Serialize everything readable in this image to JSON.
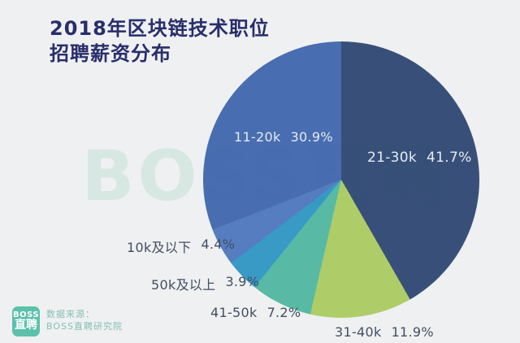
{
  "header": {
    "title_line1": "2018年区块链技术职位",
    "title_line2": "招聘薪资分布"
  },
  "watermark": {
    "text": "BOSS直聘"
  },
  "chart_data": {
    "type": "pie",
    "title": "2018年区块链技术职位招聘薪资分布",
    "unit": "%",
    "start_angle_deg": 0,
    "direction": "clockwise",
    "legend_position": "none",
    "grid": false,
    "categories": [
      "21-30k",
      "31-40k",
      "41-50k",
      "50k及以上",
      "10k及以下",
      "11-20k"
    ],
    "values": [
      41.7,
      11.9,
      7.2,
      3.9,
      4.4,
      30.9
    ],
    "slices": [
      {
        "name": "21-30k",
        "value": 41.7,
        "pct_label": "41.7%",
        "color": "#2a4470",
        "label_placement": "inside"
      },
      {
        "name": "31-40k",
        "value": 11.9,
        "pct_label": "11.9%",
        "color": "#a9ca5e",
        "label_placement": "outside"
      },
      {
        "name": "41-50k",
        "value": 7.2,
        "pct_label": "7.2%",
        "color": "#4db69f",
        "label_placement": "outside"
      },
      {
        "name": "50k及以上",
        "value": 3.9,
        "pct_label": "3.9%",
        "color": "#2a93c2",
        "label_placement": "outside"
      },
      {
        "name": "10k及以下",
        "value": 4.4,
        "pct_label": "4.4%",
        "color": "#4a74bc",
        "label_placement": "outside"
      },
      {
        "name": "11-20k",
        "value": 30.9,
        "pct_label": "30.9%",
        "color": "#3c63ac",
        "label_placement": "inside"
      }
    ]
  },
  "footer": {
    "logo_line1": "BOSS",
    "logo_line2": "直聘",
    "source_label": "数据来源：",
    "source_name": "BOSS直聘研究院",
    "logo_color": "#5cc0ab",
    "source_text_color": "#84c0b6"
  },
  "colors": {
    "background": "#eff0f1",
    "title": "#272e6b",
    "label_dark": "#424e63",
    "label_light": "#e7ebf3",
    "watermark": "#d7e7e2"
  }
}
